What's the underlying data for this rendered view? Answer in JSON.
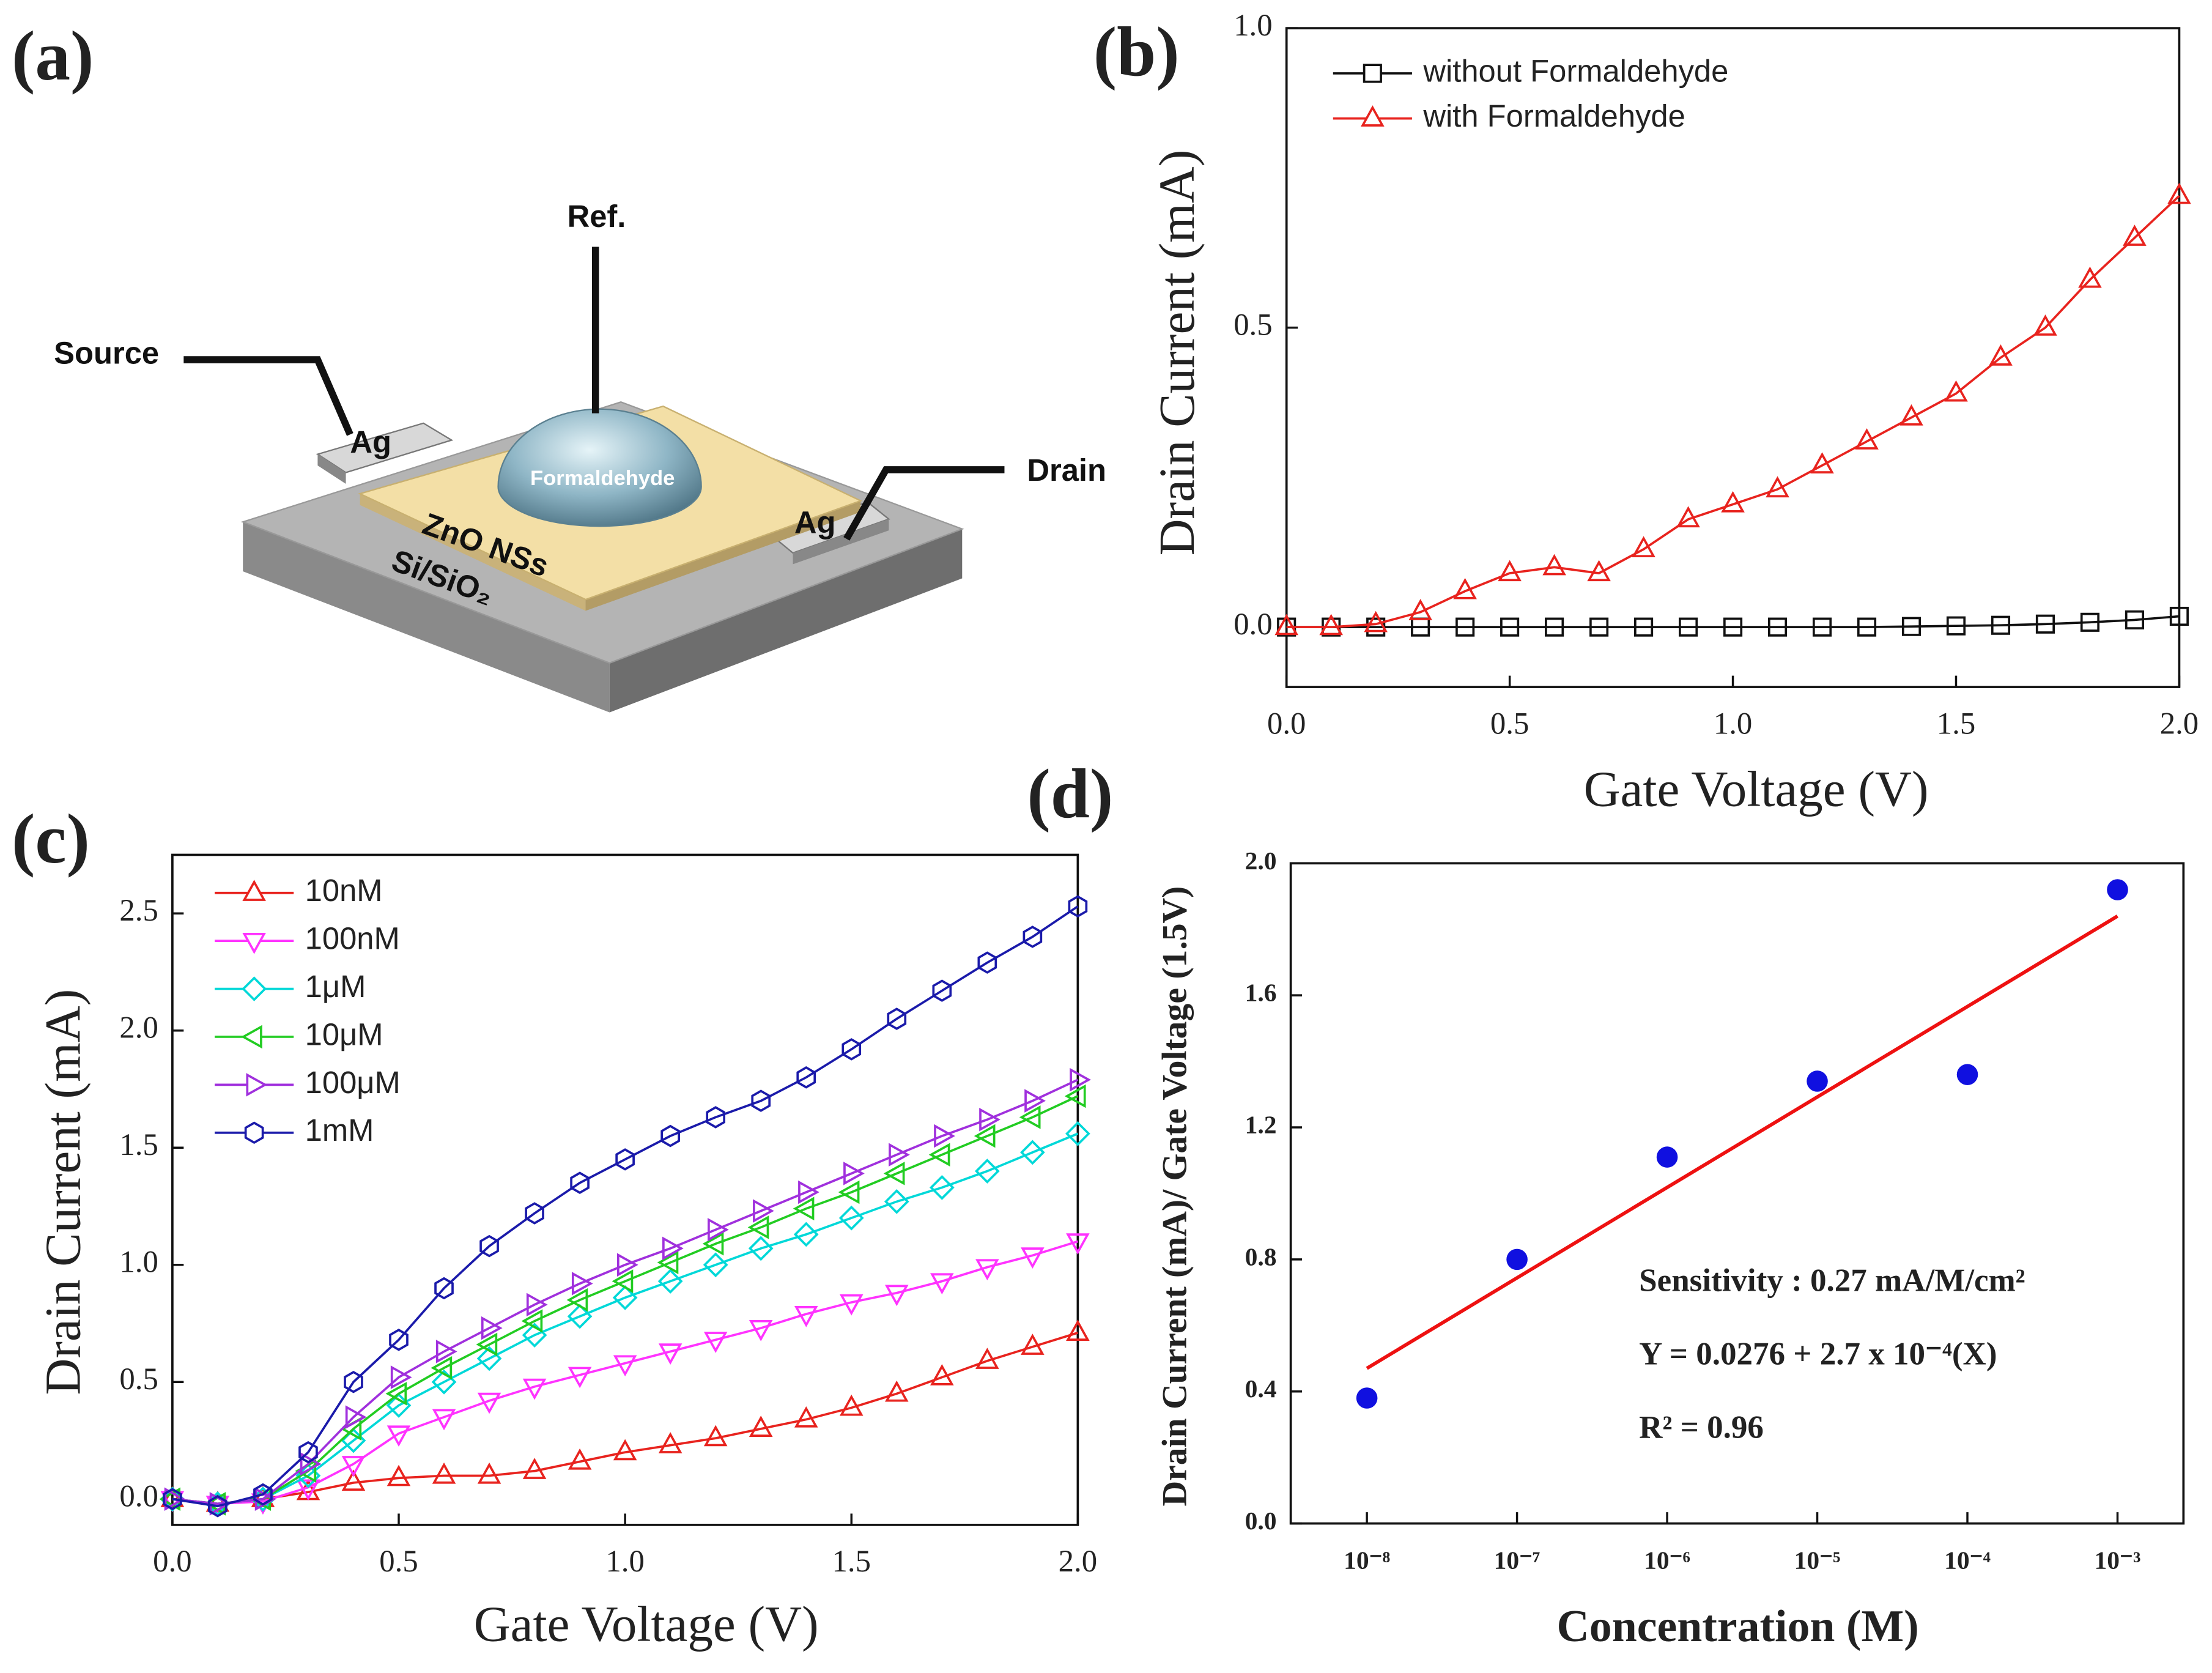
{
  "diagram": {
    "label": "(a)",
    "texts": [
      "Ref.",
      "Source",
      "Drain",
      "Ag",
      "Ag",
      "Formaldehyde",
      "ZnO NSs",
      "Si/SiO₂"
    ]
  },
  "chart_data": [
    {
      "type": "line",
      "label": "(b)",
      "xlabel": "Gate Voltage (V)",
      "ylabel": "Drain Current (mA)",
      "x": [
        0,
        0.1,
        0.2,
        0.3,
        0.4,
        0.5,
        0.6,
        0.7,
        0.8,
        0.9,
        1.0,
        1.1,
        1.2,
        1.3,
        1.4,
        1.5,
        1.6,
        1.7,
        1.8,
        1.9,
        2.0
      ],
      "xlim": [
        0,
        2.0
      ],
      "xticks": [
        {
          "value": 0,
          "label": "0.0"
        },
        0.5,
        {
          "value": 1,
          "label": "1.0"
        },
        1.5,
        {
          "value": 2,
          "label": "2.0"
        }
      ],
      "ylim": [
        -0.1,
        1.0
      ],
      "yticks": [
        {
          "value": 0,
          "label": "0.0"
        },
        0.5,
        {
          "value": 1,
          "label": "1.0"
        }
      ],
      "legend": "upper left",
      "series": [
        {
          "name": "without Formaldehyde",
          "color": "#111111",
          "marker": "square",
          "values": [
            0,
            0,
            0,
            0,
            0,
            0,
            0,
            0,
            0,
            0,
            0,
            0,
            0,
            0,
            0.001,
            0.002,
            0.003,
            0.005,
            0.008,
            0.012,
            0.018
          ]
        },
        {
          "name": "with Formaldehyde",
          "color": "#e8231e",
          "marker": "triangle-up",
          "values": [
            0,
            0,
            0.005,
            0.025,
            0.06,
            0.09,
            0.1,
            0.09,
            0.13,
            0.18,
            0.205,
            0.23,
            0.27,
            0.31,
            0.35,
            0.39,
            0.45,
            0.5,
            0.58,
            0.65,
            0.72
          ]
        }
      ]
    },
    {
      "type": "line",
      "label": "(c)",
      "xlabel": "Gate Voltage (V)",
      "ylabel": "Drain Current (mA)",
      "x": [
        0,
        0.1,
        0.2,
        0.3,
        0.4,
        0.5,
        0.6,
        0.7,
        0.8,
        0.9,
        1.0,
        1.1,
        1.2,
        1.3,
        1.4,
        1.5,
        1.6,
        1.7,
        1.8,
        1.9,
        2.0
      ],
      "xlim": [
        0,
        2.0
      ],
      "xticks": [
        {
          "value": 0,
          "label": "0.0"
        },
        0.5,
        {
          "value": 1,
          "label": "1.0"
        },
        1.5,
        {
          "value": 2,
          "label": "2.0"
        }
      ],
      "ylim": [
        -0.11,
        2.75
      ],
      "yticks": [
        {
          "value": 0,
          "label": "0.0"
        },
        0.5,
        {
          "value": 1,
          "label": "1.0"
        },
        1.5,
        {
          "value": 2,
          "label": "2.0"
        },
        2.5
      ],
      "legend": "upper left",
      "series": [
        {
          "name": "10nM",
          "color": "#e8231e",
          "marker": "triangle-up",
          "values": [
            0,
            -0.02,
            0,
            0.03,
            0.07,
            0.09,
            0.1,
            0.1,
            0.12,
            0.16,
            0.2,
            0.23,
            0.26,
            0.3,
            0.34,
            0.39,
            0.45,
            0.52,
            0.59,
            0.65,
            0.71
          ]
        },
        {
          "name": "100nM",
          "color": "#ff33ff",
          "marker": "triangle-down",
          "values": [
            0,
            -0.02,
            -0.01,
            0.05,
            0.15,
            0.28,
            0.35,
            0.42,
            0.48,
            0.53,
            0.58,
            0.63,
            0.68,
            0.73,
            0.79,
            0.84,
            0.88,
            0.93,
            0.99,
            1.04,
            1.1
          ]
        },
        {
          "name": "1μM",
          "color": "#00d8d8",
          "marker": "diamond",
          "values": [
            0,
            -0.02,
            0,
            0.1,
            0.25,
            0.4,
            0.5,
            0.6,
            0.7,
            0.78,
            0.86,
            0.93,
            1.0,
            1.07,
            1.13,
            1.2,
            1.27,
            1.33,
            1.4,
            1.48,
            1.56
          ]
        },
        {
          "name": "10μM",
          "color": "#22cc22",
          "marker": "triangle-left",
          "values": [
            0,
            -0.02,
            0,
            0.12,
            0.3,
            0.45,
            0.56,
            0.66,
            0.76,
            0.85,
            0.93,
            1.01,
            1.09,
            1.16,
            1.24,
            1.31,
            1.39,
            1.47,
            1.55,
            1.63,
            1.72
          ]
        },
        {
          "name": "100μM",
          "color": "#a030dd",
          "marker": "triangle-right",
          "values": [
            0,
            -0.02,
            0,
            0.15,
            0.35,
            0.52,
            0.63,
            0.73,
            0.83,
            0.92,
            1.0,
            1.07,
            1.15,
            1.23,
            1.31,
            1.39,
            1.47,
            1.55,
            1.62,
            1.7,
            1.79
          ]
        },
        {
          "name": "1mM",
          "color": "#1a1aaa",
          "marker": "hexagon",
          "values": [
            0,
            -0.03,
            0.02,
            0.2,
            0.5,
            0.68,
            0.9,
            1.08,
            1.22,
            1.35,
            1.45,
            1.55,
            1.63,
            1.7,
            1.8,
            1.92,
            2.05,
            2.17,
            2.29,
            2.4,
            2.53
          ]
        }
      ]
    },
    {
      "type": "scatter",
      "label": "(d)",
      "xlabel": "Concentration (M)",
      "ylabel": "Drain Current (mA)/ Gate Voltage (1.5V)",
      "xlog": true,
      "x": [
        1e-08,
        1e-07,
        1e-06,
        1e-05,
        0.0001,
        0.001
      ],
      "values": [
        0.38,
        0.8,
        1.11,
        1.34,
        1.36,
        1.92
      ],
      "color": "#1010e0",
      "xlim": [
        3.11e-09,
        0.00275
      ],
      "xticks": [
        {
          "value": 1e-08,
          "label": "10⁻⁸"
        },
        {
          "value": 1e-07,
          "label": "10⁻⁷"
        },
        {
          "value": 1e-06,
          "label": "10⁻⁶"
        },
        {
          "value": 1e-05,
          "label": "10⁻⁵"
        },
        {
          "value": 0.0001,
          "label": "10⁻⁴"
        },
        {
          "value": 0.001,
          "label": "10⁻³"
        }
      ],
      "ylim": [
        0,
        2.0
      ],
      "yticks": [
        {
          "value": 0,
          "label": "0.0"
        },
        0.4,
        0.8,
        1.2,
        1.6,
        {
          "value": 2,
          "label": "2.0"
        }
      ],
      "fit": {
        "x": [
          1e-08,
          0.001
        ],
        "values": [
          0.47,
          1.84
        ],
        "color": "#ee1111"
      },
      "annotations": [
        "Sensitivity : 0.27 mA/M/cm²",
        "Y = 0.0276 + 2.7 x 10⁻⁴(X)",
        "R² = 0.96"
      ]
    }
  ]
}
